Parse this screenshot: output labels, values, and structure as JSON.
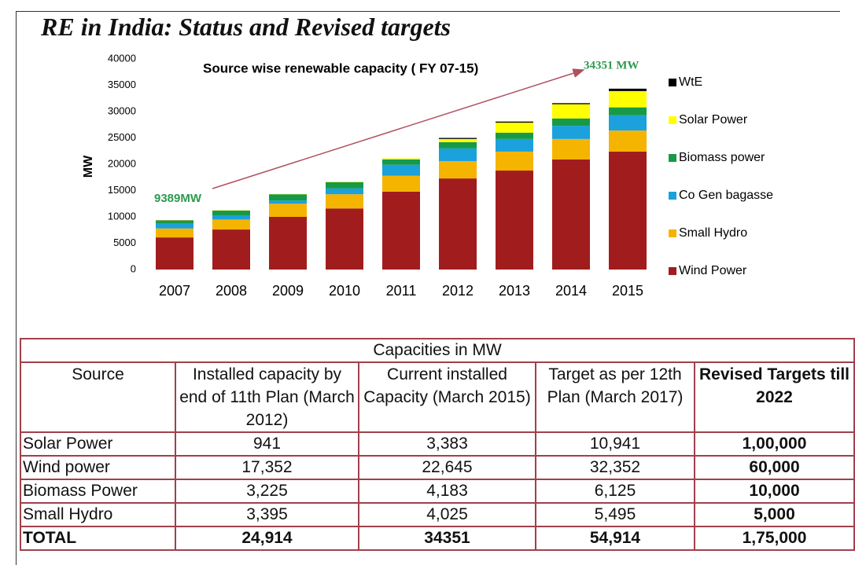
{
  "title": "RE in India: Status and Revised targets",
  "chart_data": {
    "type": "stacked-bar",
    "title": "Source wise renewable capacity ( FY 07-15)",
    "y_label": "MW",
    "annotations": [
      "9389MW",
      "34351 MW"
    ],
    "categories": [
      "2007",
      "2008",
      "2009",
      "2010",
      "2011",
      "2012",
      "2013",
      "2014",
      "2015"
    ],
    "series": [
      {
        "name": "Wind Power",
        "color": "#a11d1d",
        "values": [
          6100,
          7600,
          10000,
          11600,
          14800,
          17300,
          18800,
          20900,
          22400
        ]
      },
      {
        "name": "Small Hydro",
        "color": "#f5b400",
        "values": [
          1700,
          1900,
          2500,
          2700,
          3000,
          3300,
          3600,
          3900,
          4000
        ]
      },
      {
        "name": "Co Gen bagasse",
        "color": "#1ba1db",
        "values": [
          900,
          800,
          600,
          1100,
          2100,
          2400,
          2400,
          2500,
          2900
        ]
      },
      {
        "name": "Biomass power",
        "color": "#169a48",
        "values": [
          600,
          900,
          1200,
          1200,
          1000,
          1200,
          1200,
          1400,
          1500
        ]
      },
      {
        "name": "Solar Power",
        "color": "#ffff00",
        "values": [
          50,
          50,
          50,
          100,
          200,
          600,
          1900,
          2700,
          3100
        ]
      },
      {
        "name": "WtE",
        "color": "#000000",
        "values": [
          39,
          0,
          0,
          0,
          0,
          200,
          200,
          200,
          451
        ]
      }
    ],
    "ylim": [
      0,
      40000
    ],
    "yticks": [
      0,
      5000,
      10000,
      15000,
      20000,
      25000,
      30000,
      35000,
      40000
    ]
  },
  "table": {
    "caption": "Capacities  in MW",
    "columns": [
      "Source",
      "Installed capacity by end of 11th Plan (March 2012)",
      "Current installed Capacity (March 2015)",
      "Target as per 12th Plan (March 2017)",
      "Revised Targets till 2022"
    ],
    "rows": [
      [
        "Solar  Power",
        "941",
        "3,383",
        "10,941",
        "1,00,000"
      ],
      [
        "Wind power",
        "17,352",
        "22,645",
        "32,352",
        "60,000"
      ],
      [
        "Biomass Power",
        "3,225",
        "4,183",
        "6,125",
        "10,000"
      ],
      [
        "Small Hydro",
        "3,395",
        "4,025",
        "5,495",
        "5,000"
      ],
      [
        "TOTAL",
        "24,914",
        "34351",
        "54,914",
        "1,75,000"
      ]
    ]
  }
}
